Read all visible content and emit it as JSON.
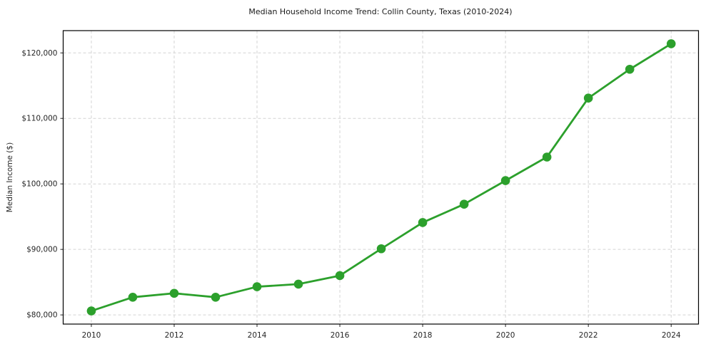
{
  "title": "Median Household Income Trend: Collin County, Texas (2010-2024)",
  "chart_data": {
    "type": "line",
    "title": "Median Household Income Trend: Collin County, Texas (2010-2024)",
    "xlabel": "",
    "ylabel": "Median Income ($)",
    "series_name": "Median Household Income",
    "x": [
      2010,
      2011,
      2012,
      2013,
      2014,
      2015,
      2016,
      2017,
      2018,
      2019,
      2020,
      2021,
      2022,
      2023,
      2024
    ],
    "values": [
      80600,
      82700,
      83300,
      82700,
      84300,
      84700,
      86000,
      90100,
      94100,
      96900,
      100500,
      104100,
      113100,
      117500,
      121400
    ],
    "xticks": [
      2010,
      2012,
      2014,
      2016,
      2018,
      2020,
      2022,
      2024
    ],
    "xtick_labels": [
      "2010",
      "2012",
      "2014",
      "2016",
      "2018",
      "2020",
      "2022",
      "2024"
    ],
    "yticks": [
      80000,
      90000,
      100000,
      110000,
      120000
    ],
    "ytick_labels": [
      "$80,000",
      "$90,000",
      "$100,000",
      "$110,000",
      "$120,000"
    ],
    "xlim": [
      2009.32,
      2024.66
    ],
    "ylim": [
      78600,
      123400
    ],
    "grid": true,
    "grid_style": "dashed",
    "legend_position": "none",
    "line_color": "#2ca02c",
    "marker_color": "#2ca02c",
    "marker_shape": "circle",
    "grid_color": "#d4d4d4",
    "spine_color": "#000000",
    "background_color": "#ffffff"
  }
}
